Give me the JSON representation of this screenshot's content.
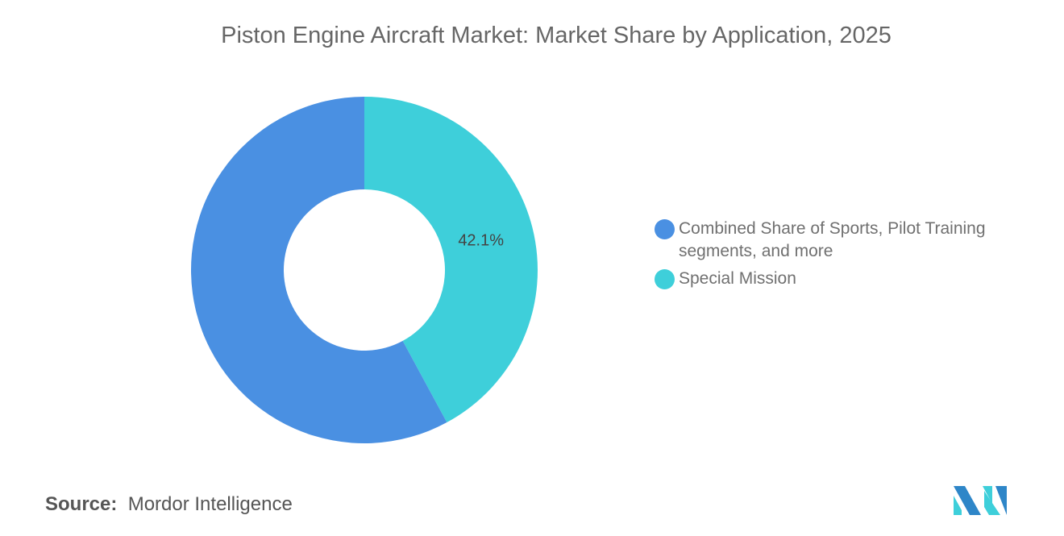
{
  "chart_data": {
    "type": "pie",
    "style": "donut",
    "title": "Piston Engine Aircraft Market: Market Share by Application, 2025",
    "categories": [
      "Combined Share of Sports, Pilot Training segments, and more",
      "Special Mission"
    ],
    "values": [
      57.9,
      42.1
    ],
    "data_labels": [
      "",
      "42.1%"
    ],
    "colors": [
      "#4A90E2",
      "#3ECFDA"
    ],
    "legend_position": "right"
  },
  "source": {
    "label": "Source:",
    "value": "Mordor Intelligence"
  },
  "logo": {
    "text": "Mordor Intelligence"
  }
}
